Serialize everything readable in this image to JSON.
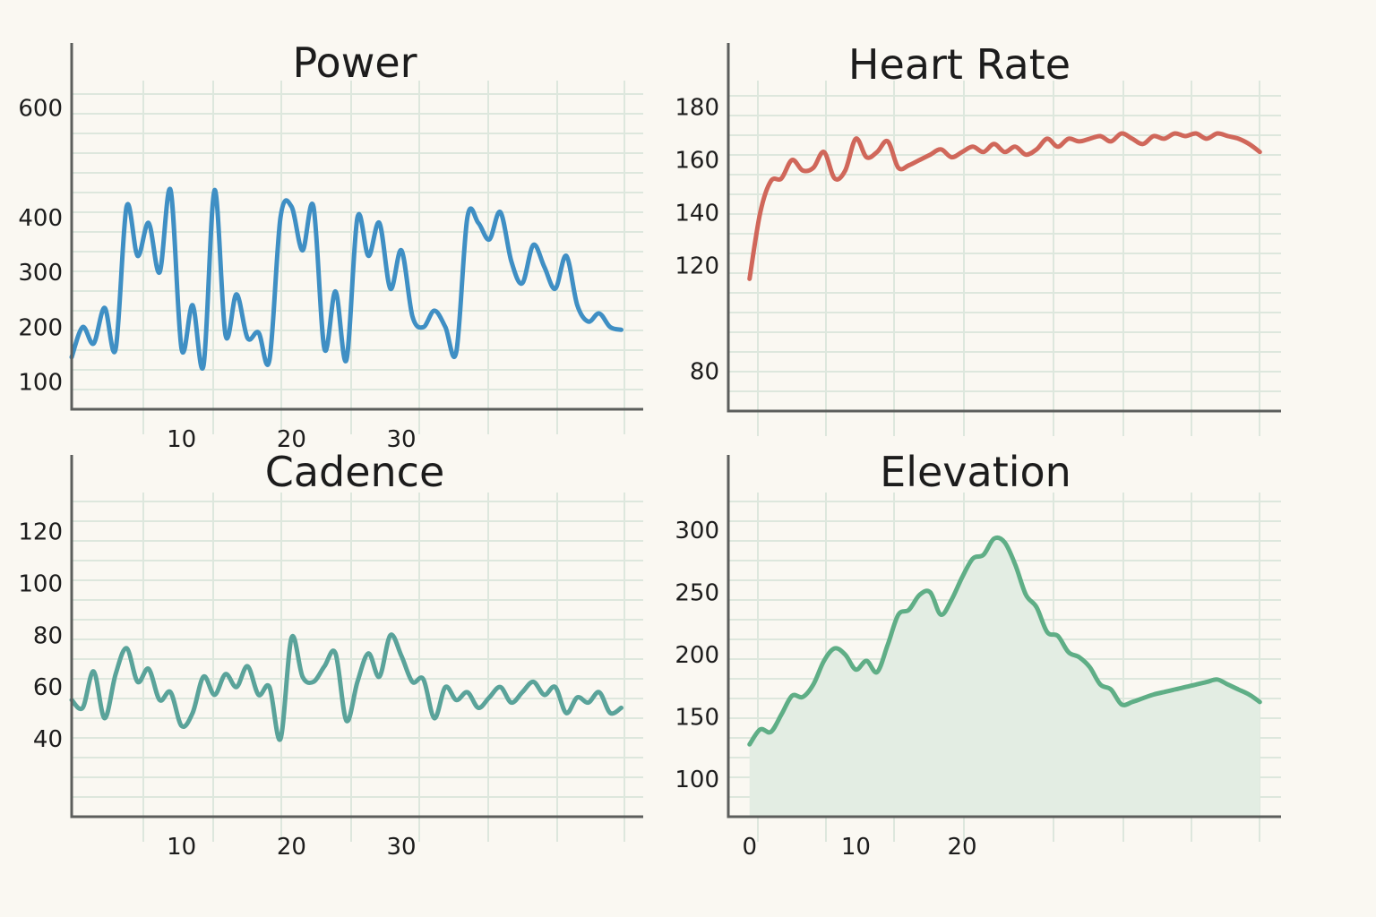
{
  "chart_data": [
    {
      "id": "power",
      "type": "line",
      "title": "Power",
      "color": "#3f8fc4",
      "ylim": [
        50,
        650
      ],
      "yticks": [
        100,
        200,
        300,
        400,
        600
      ],
      "xlim": [
        0,
        52
      ],
      "xticks": [
        10,
        20,
        30
      ],
      "x": [
        0,
        1,
        2,
        3,
        4,
        5,
        6,
        7,
        8,
        9,
        10,
        11,
        12,
        13,
        14,
        15,
        16,
        17,
        18,
        19,
        20,
        21,
        22,
        23,
        24,
        25,
        26,
        27,
        28,
        29,
        30,
        31,
        32,
        33,
        34,
        35,
        36,
        37,
        38,
        39,
        40,
        41,
        42,
        43,
        44,
        45,
        46,
        47,
        48,
        49,
        50
      ],
      "values": [
        145,
        200,
        170,
        235,
        160,
        420,
        330,
        390,
        300,
        450,
        160,
        240,
        130,
        450,
        185,
        260,
        180,
        190,
        140,
        400,
        420,
        340,
        420,
        160,
        265,
        140,
        400,
        330,
        390,
        270,
        340,
        220,
        200,
        230,
        200,
        155,
        400,
        390,
        360,
        410,
        320,
        280,
        350,
        310,
        270,
        330,
        240,
        210,
        225,
        200,
        195
      ]
    },
    {
      "id": "heart-rate",
      "type": "line",
      "title": "Heart Rate",
      "color": "#d0675a",
      "ylim": [
        65,
        190
      ],
      "yticks": [
        80,
        120,
        140,
        160,
        180
      ],
      "xlim": [
        -2,
        50
      ],
      "xticks": [],
      "x": [
        0,
        1,
        2,
        3,
        4,
        5,
        6,
        7,
        8,
        9,
        10,
        11,
        12,
        13,
        14,
        15,
        16,
        17,
        18,
        19,
        20,
        21,
        22,
        23,
        24,
        25,
        26,
        27,
        28,
        29,
        30,
        31,
        32,
        33,
        34,
        35,
        36,
        37,
        38,
        39,
        40,
        41,
        42,
        43,
        44,
        45,
        46,
        47,
        48
      ],
      "values": [
        115,
        140,
        152,
        153,
        160,
        156,
        157,
        163,
        153,
        156,
        168,
        161,
        163,
        167,
        157,
        158,
        160,
        162,
        164,
        161,
        163,
        165,
        163,
        166,
        163,
        165,
        162,
        164,
        168,
        165,
        168,
        167,
        168,
        169,
        167,
        170,
        168,
        166,
        169,
        168,
        170,
        169,
        170,
        168,
        170,
        169,
        168,
        166,
        163
      ]
    },
    {
      "id": "cadence",
      "type": "line",
      "title": "Cadence",
      "color": "#5aa39a",
      "ylim": [
        10,
        135
      ],
      "yticks": [
        40,
        60,
        80,
        100,
        120
      ],
      "xlim": [
        0,
        52
      ],
      "xticks": [
        10,
        20,
        30
      ],
      "x": [
        0,
        1,
        2,
        3,
        4,
        5,
        6,
        7,
        8,
        9,
        10,
        11,
        12,
        13,
        14,
        15,
        16,
        17,
        18,
        19,
        20,
        21,
        22,
        23,
        24,
        25,
        26,
        27,
        28,
        29,
        30,
        31,
        32,
        33,
        34,
        35,
        36,
        37,
        38,
        39,
        40,
        41,
        42,
        43,
        44,
        45,
        46,
        47,
        48,
        49,
        50
      ],
      "values": [
        55,
        52,
        66,
        48,
        65,
        75,
        62,
        67,
        55,
        58,
        45,
        50,
        64,
        57,
        65,
        60,
        68,
        57,
        60,
        40,
        79,
        64,
        62,
        68,
        73,
        47,
        62,
        73,
        64,
        80,
        72,
        62,
        63,
        48,
        60,
        55,
        58,
        52,
        56,
        60,
        54,
        58,
        62,
        57,
        60,
        50,
        56,
        54,
        58,
        50,
        52
      ]
    },
    {
      "id": "elevation",
      "type": "area",
      "title": "Elevation",
      "color": "#5fae86",
      "fill": "#e3ede3",
      "ylim": [
        70,
        330
      ],
      "yticks": [
        100,
        150,
        200,
        250,
        300
      ],
      "xlim": [
        -2,
        50
      ],
      "xticks": [
        0,
        10,
        20
      ],
      "x": [
        0,
        1,
        2,
        3,
        4,
        5,
        6,
        7,
        8,
        9,
        10,
        11,
        12,
        13,
        14,
        15,
        16,
        17,
        18,
        19,
        20,
        21,
        22,
        23,
        24,
        25,
        26,
        27,
        28,
        29,
        30,
        31,
        32,
        33,
        34,
        35,
        36,
        37,
        38,
        39,
        40,
        41,
        42,
        43,
        44,
        45,
        46,
        47,
        48
      ],
      "values": [
        128,
        140,
        138,
        152,
        167,
        166,
        176,
        195,
        205,
        200,
        188,
        195,
        186,
        208,
        232,
        236,
        248,
        250,
        232,
        244,
        262,
        277,
        280,
        293,
        290,
        272,
        248,
        238,
        218,
        215,
        202,
        198,
        190,
        176,
        172,
        160,
        162,
        165,
        168,
        170,
        172,
        174,
        176,
        178,
        180,
        176,
        172,
        168,
        162
      ]
    }
  ]
}
